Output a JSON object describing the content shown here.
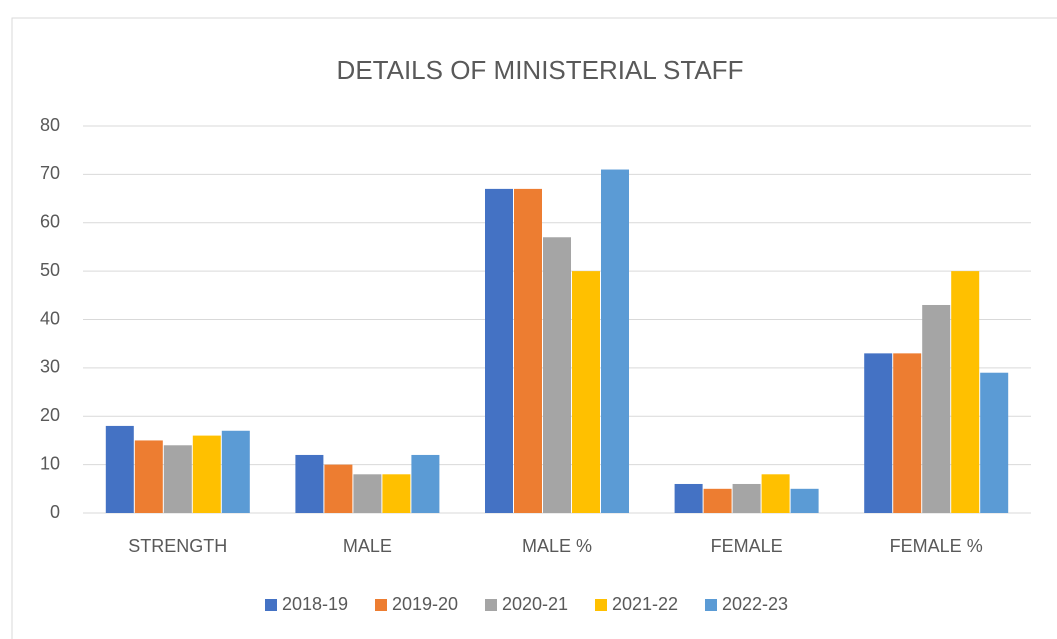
{
  "chart_data": {
    "type": "bar",
    "title": "DETAILS OF MINISTERIAL STAFF",
    "categories": [
      "STRENGTH",
      "MALE",
      "MALE %",
      "FEMALE",
      "FEMALE %"
    ],
    "series": [
      {
        "name": "2018-19",
        "color": "#4472c4",
        "values": [
          18,
          12,
          67,
          6,
          33
        ]
      },
      {
        "name": "2019-20",
        "color": "#ed7d31",
        "values": [
          15,
          10,
          67,
          5,
          33
        ]
      },
      {
        "name": "2020-21",
        "color": "#a5a5a5",
        "values": [
          14,
          8,
          57,
          6,
          43
        ]
      },
      {
        "name": "2021-22",
        "color": "#ffc000",
        "values": [
          16,
          8,
          50,
          8,
          50
        ]
      },
      {
        "name": "2022-23",
        "color": "#5b9bd5",
        "values": [
          17,
          12,
          71,
          5,
          29
        ]
      }
    ],
    "ylim": [
      0,
      80
    ],
    "yticks": [
      0,
      10,
      20,
      30,
      40,
      50,
      60,
      70,
      80
    ],
    "grid": true,
    "legend": "bottom"
  }
}
